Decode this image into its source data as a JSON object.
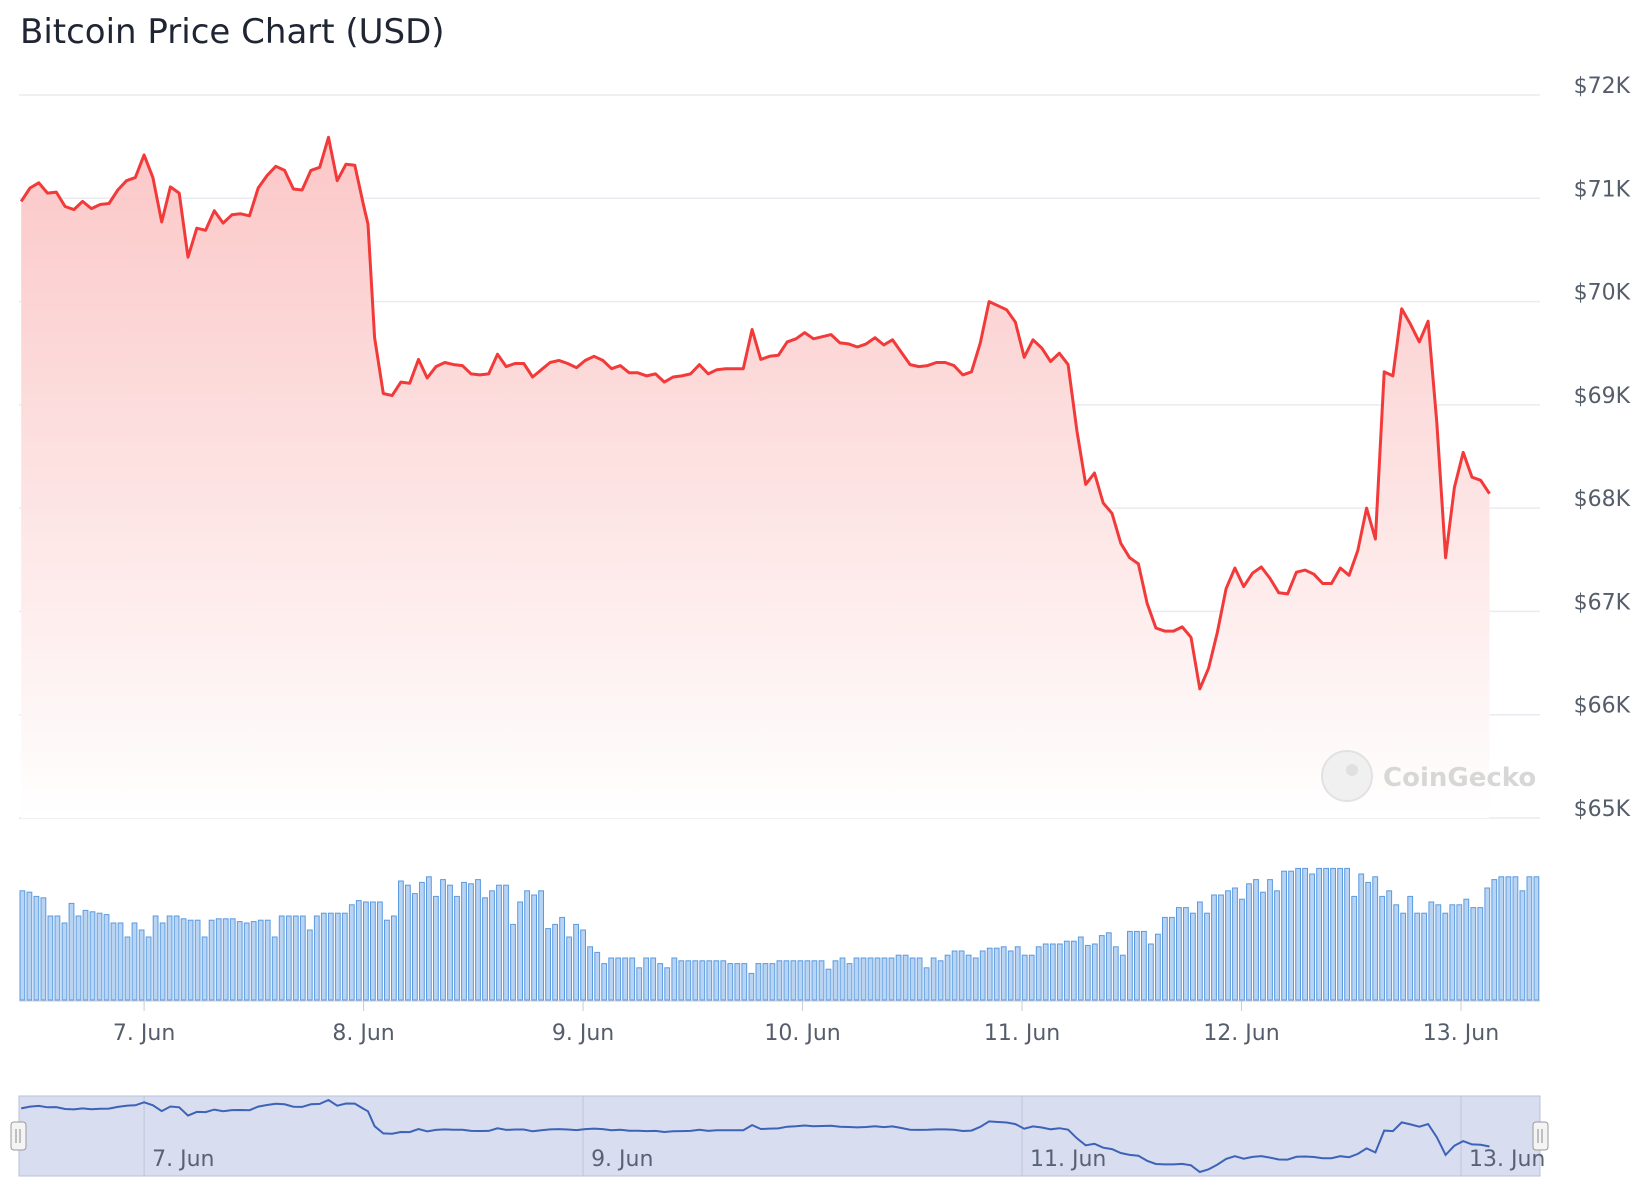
{
  "chart_data": {
    "type": "line",
    "title": "Bitcoin Price Chart (USD)",
    "currency": "USD",
    "watermark": "CoinGecko",
    "y_ticks": [
      "$72K",
      "$71K",
      "$70K",
      "$69K",
      "$68K",
      "$67K",
      "$66K",
      "$65K"
    ],
    "y_tick_values": [
      72000,
      71000,
      70000,
      69000,
      68000,
      67000,
      66000,
      65000
    ],
    "ylim": [
      65000,
      72000
    ],
    "x_ticks": [
      "7. Jun",
      "8. Jun",
      "9. Jun",
      "10. Jun",
      "11. Jun",
      "12. Jun",
      "13. Jun"
    ],
    "x_tick_days": [
      7,
      8,
      9,
      10,
      11,
      12,
      13
    ],
    "xlim_days": [
      6.43,
      13.36
    ],
    "navigator_ticks": [
      "7. Jun",
      "9. Jun",
      "11. Jun",
      "13. Jun"
    ],
    "navigator_tick_days": [
      7,
      9,
      11,
      13
    ],
    "grid": true,
    "colors": {
      "line": "#f23a3a",
      "area_top": "#fbc4c4",
      "area_bottom": "#ffffff",
      "volume_fill": "#b9d3f2",
      "volume_stroke": "#5a9be0",
      "navigator_fill": "#d8deef",
      "navigator_line": "#3c63b8",
      "grid": "#e9ebf0"
    },
    "series": [
      {
        "name": "Price",
        "points": [
          [
            6.44,
            70970
          ],
          [
            6.48,
            71100
          ],
          [
            6.52,
            71150
          ],
          [
            6.56,
            71050
          ],
          [
            6.6,
            71060
          ],
          [
            6.64,
            70920
          ],
          [
            6.68,
            70890
          ],
          [
            6.72,
            70970
          ],
          [
            6.76,
            70900
          ],
          [
            6.8,
            70940
          ],
          [
            6.84,
            70950
          ],
          [
            6.88,
            71080
          ],
          [
            6.92,
            71170
          ],
          [
            6.96,
            71200
          ],
          [
            7.0,
            71420
          ],
          [
            7.04,
            71200
          ],
          [
            7.08,
            70770
          ],
          [
            7.12,
            71110
          ],
          [
            7.16,
            71050
          ],
          [
            7.2,
            70430
          ],
          [
            7.24,
            70710
          ],
          [
            7.28,
            70690
          ],
          [
            7.32,
            70880
          ],
          [
            7.36,
            70760
          ],
          [
            7.4,
            70840
          ],
          [
            7.44,
            70850
          ],
          [
            7.48,
            70830
          ],
          [
            7.52,
            71100
          ],
          [
            7.56,
            71220
          ],
          [
            7.6,
            71310
          ],
          [
            7.64,
            71270
          ],
          [
            7.68,
            71090
          ],
          [
            7.72,
            71080
          ],
          [
            7.76,
            71270
          ],
          [
            7.8,
            71300
          ],
          [
            7.84,
            71590
          ],
          [
            7.88,
            71170
          ],
          [
            7.92,
            71330
          ],
          [
            7.96,
            71320
          ],
          [
            8.0,
            70930
          ],
          [
            8.02,
            70750
          ],
          [
            8.05,
            69650
          ],
          [
            8.09,
            69110
          ],
          [
            8.13,
            69090
          ],
          [
            8.17,
            69220
          ],
          [
            8.21,
            69210
          ],
          [
            8.25,
            69440
          ],
          [
            8.29,
            69260
          ],
          [
            8.33,
            69370
          ],
          [
            8.37,
            69410
          ],
          [
            8.41,
            69390
          ],
          [
            8.45,
            69380
          ],
          [
            8.49,
            69300
          ],
          [
            8.53,
            69290
          ],
          [
            8.57,
            69300
          ],
          [
            8.61,
            69490
          ],
          [
            8.65,
            69370
          ],
          [
            8.69,
            69400
          ],
          [
            8.73,
            69400
          ],
          [
            8.77,
            69270
          ],
          [
            8.81,
            69340
          ],
          [
            8.85,
            69410
          ],
          [
            8.89,
            69430
          ],
          [
            8.93,
            69400
          ],
          [
            8.97,
            69360
          ],
          [
            9.01,
            69430
          ],
          [
            9.05,
            69470
          ],
          [
            9.09,
            69430
          ],
          [
            9.13,
            69350
          ],
          [
            9.17,
            69380
          ],
          [
            9.21,
            69310
          ],
          [
            9.25,
            69310
          ],
          [
            9.29,
            69280
          ],
          [
            9.33,
            69300
          ],
          [
            9.37,
            69220
          ],
          [
            9.41,
            69270
          ],
          [
            9.45,
            69280
          ],
          [
            9.49,
            69300
          ],
          [
            9.53,
            69390
          ],
          [
            9.57,
            69300
          ],
          [
            9.61,
            69340
          ],
          [
            9.65,
            69350
          ],
          [
            9.69,
            69350
          ],
          [
            9.73,
            69350
          ],
          [
            9.77,
            69730
          ],
          [
            9.81,
            69440
          ],
          [
            9.85,
            69470
          ],
          [
            9.89,
            69480
          ],
          [
            9.93,
            69610
          ],
          [
            9.97,
            69640
          ],
          [
            10.01,
            69700
          ],
          [
            10.05,
            69640
          ],
          [
            10.09,
            69660
          ],
          [
            10.13,
            69680
          ],
          [
            10.17,
            69600
          ],
          [
            10.21,
            69590
          ],
          [
            10.25,
            69560
          ],
          [
            10.29,
            69590
          ],
          [
            10.33,
            69650
          ],
          [
            10.37,
            69580
          ],
          [
            10.41,
            69630
          ],
          [
            10.45,
            69510
          ],
          [
            10.49,
            69390
          ],
          [
            10.53,
            69370
          ],
          [
            10.57,
            69380
          ],
          [
            10.61,
            69410
          ],
          [
            10.65,
            69410
          ],
          [
            10.69,
            69380
          ],
          [
            10.73,
            69290
          ],
          [
            10.77,
            69320
          ],
          [
            10.81,
            69600
          ],
          [
            10.85,
            70000
          ],
          [
            10.89,
            69960
          ],
          [
            10.93,
            69920
          ],
          [
            10.97,
            69800
          ],
          [
            11.01,
            69460
          ],
          [
            11.05,
            69630
          ],
          [
            11.09,
            69550
          ],
          [
            11.13,
            69420
          ],
          [
            11.17,
            69500
          ],
          [
            11.21,
            69390
          ],
          [
            11.25,
            68750
          ],
          [
            11.29,
            68230
          ],
          [
            11.33,
            68340
          ],
          [
            11.37,
            68050
          ],
          [
            11.41,
            67950
          ],
          [
            11.45,
            67660
          ],
          [
            11.49,
            67520
          ],
          [
            11.53,
            67460
          ],
          [
            11.57,
            67080
          ],
          [
            11.61,
            66840
          ],
          [
            11.65,
            66810
          ],
          [
            11.69,
            66810
          ],
          [
            11.73,
            66850
          ],
          [
            11.77,
            66750
          ],
          [
            11.81,
            66250
          ],
          [
            11.85,
            66450
          ],
          [
            11.89,
            66800
          ],
          [
            11.93,
            67220
          ],
          [
            11.97,
            67420
          ],
          [
            12.01,
            67240
          ],
          [
            12.05,
            67370
          ],
          [
            12.09,
            67430
          ],
          [
            12.13,
            67320
          ],
          [
            12.17,
            67180
          ],
          [
            12.21,
            67170
          ],
          [
            12.25,
            67380
          ],
          [
            12.29,
            67400
          ],
          [
            12.33,
            67360
          ],
          [
            12.37,
            67270
          ],
          [
            12.41,
            67270
          ],
          [
            12.45,
            67420
          ],
          [
            12.49,
            67350
          ],
          [
            12.53,
            67590
          ],
          [
            12.57,
            68000
          ],
          [
            12.61,
            67700
          ],
          [
            12.65,
            69320
          ],
          [
            12.69,
            69280
          ],
          [
            12.73,
            69930
          ],
          [
            12.77,
            69780
          ],
          [
            12.81,
            69610
          ],
          [
            12.85,
            69810
          ],
          [
            12.89,
            68830
          ],
          [
            12.93,
            67520
          ],
          [
            12.97,
            68200
          ],
          [
            13.01,
            68540
          ],
          [
            13.05,
            68300
          ],
          [
            13.09,
            68270
          ],
          [
            13.13,
            68140
          ]
        ]
      },
      {
        "name": "Volume",
        "relative_values": [
          0.78,
          0.77,
          0.74,
          0.73,
          0.6,
          0.6,
          0.55,
          0.69,
          0.6,
          0.64,
          0.63,
          0.62,
          0.61,
          0.55,
          0.55,
          0.45,
          0.55,
          0.5,
          0.45,
          0.6,
          0.55,
          0.6,
          0.6,
          0.58,
          0.57,
          0.57,
          0.45,
          0.57,
          0.58,
          0.58,
          0.58,
          0.56,
          0.55,
          0.56,
          0.57,
          0.57,
          0.45,
          0.6,
          0.6,
          0.6,
          0.6,
          0.5,
          0.6,
          0.62,
          0.62,
          0.62,
          0.62,
          0.68,
          0.71,
          0.7,
          0.7,
          0.7,
          0.57,
          0.6,
          0.85,
          0.82,
          0.76,
          0.84,
          0.88,
          0.74,
          0.86,
          0.82,
          0.74,
          0.84,
          0.83,
          0.86,
          0.73,
          0.78,
          0.82,
          0.82,
          0.54,
          0.7,
          0.78,
          0.75,
          0.78,
          0.51,
          0.54,
          0.59,
          0.45,
          0.54,
          0.5,
          0.38,
          0.34,
          0.26,
          0.3,
          0.3,
          0.3,
          0.3,
          0.23,
          0.3,
          0.3,
          0.26,
          0.23,
          0.3,
          0.28,
          0.28,
          0.28,
          0.28,
          0.28,
          0.28,
          0.28,
          0.26,
          0.26,
          0.26,
          0.19,
          0.26,
          0.26,
          0.26,
          0.28,
          0.28,
          0.28,
          0.28,
          0.28,
          0.28,
          0.28,
          0.22,
          0.28,
          0.3,
          0.26,
          0.3,
          0.3,
          0.3,
          0.3,
          0.3,
          0.3,
          0.32,
          0.32,
          0.3,
          0.3,
          0.23,
          0.3,
          0.28,
          0.32,
          0.35,
          0.35,
          0.32,
          0.3,
          0.35,
          0.37,
          0.37,
          0.38,
          0.35,
          0.38,
          0.32,
          0.32,
          0.38,
          0.4,
          0.4,
          0.4,
          0.42,
          0.42,
          0.45,
          0.39,
          0.4,
          0.46,
          0.48,
          0.38,
          0.32,
          0.49,
          0.49,
          0.49,
          0.4,
          0.47,
          0.59,
          0.59,
          0.66,
          0.66,
          0.62,
          0.7,
          0.62,
          0.75,
          0.75,
          0.78,
          0.8,
          0.72,
          0.83,
          0.86,
          0.77,
          0.86,
          0.78,
          0.92,
          0.92,
          0.94,
          0.94,
          0.9,
          0.94,
          0.94,
          0.94,
          0.94,
          0.94,
          0.74,
          0.9,
          0.84,
          0.88,
          0.74,
          0.78,
          0.68,
          0.62,
          0.74,
          0.62,
          0.62,
          0.7,
          0.68,
          0.62,
          0.68,
          0.68,
          0.72,
          0.66,
          0.66,
          0.8,
          0.86,
          0.88,
          0.88,
          0.88,
          0.78,
          0.88,
          0.88
        ]
      }
    ]
  }
}
